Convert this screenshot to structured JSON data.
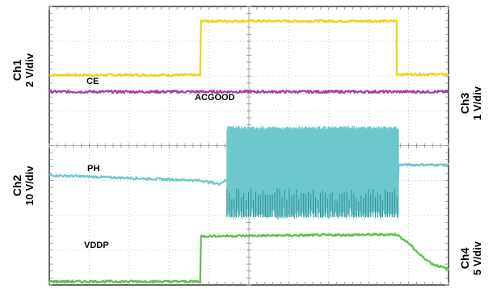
{
  "chart_data": {
    "type": "line",
    "title": "",
    "grid": {
      "divisions_x": 10,
      "divisions_y": 8,
      "visible": true
    },
    "x_range": [
      0,
      10
    ],
    "y_range": [
      0,
      8
    ],
    "channel_labels": [
      {
        "id": "ch1",
        "name": "Ch1",
        "scale": "2 V/div",
        "side": "left"
      },
      {
        "id": "ch2",
        "name": "Ch2",
        "scale": "10 V/div",
        "side": "left"
      },
      {
        "id": "ch3",
        "name": "Ch3",
        "scale": "1 V/div",
        "side": "right"
      },
      {
        "id": "ch4",
        "name": "Ch4",
        "scale": "5 V/div",
        "side": "right"
      }
    ],
    "series": [
      {
        "name": "CE",
        "color": "#e8d619",
        "noise": 0.03,
        "points": [
          [
            0,
            6.03
          ],
          [
            3.8,
            6.03
          ],
          [
            3.8,
            7.58
          ],
          [
            8.7,
            7.58
          ],
          [
            8.7,
            6.05
          ],
          [
            10,
            6.05
          ]
        ]
      },
      {
        "name": "ACGOOD",
        "color": "#a33fa3",
        "noise": 0.035,
        "points": [
          [
            0,
            5.55
          ],
          [
            10,
            5.55
          ]
        ]
      },
      {
        "name": "PH",
        "color": "#6cc8cc",
        "noise": 0.03,
        "points": [
          [
            0,
            3.15
          ],
          [
            3.8,
            3.0
          ],
          [
            4.25,
            2.9
          ],
          [
            4.4,
            3.0
          ],
          [
            8.75,
            3.05
          ],
          [
            8.75,
            3.45
          ],
          [
            10,
            3.45
          ]
        ],
        "switching": {
          "from": 4.45,
          "to": 8.75,
          "low": 1.9,
          "high": 4.5
        }
      },
      {
        "name": "VDDP",
        "color": "#5cc04a",
        "noise": 0.03,
        "points": [
          [
            0,
            0.1
          ],
          [
            3.8,
            0.1
          ],
          [
            3.8,
            1.4
          ],
          [
            8.7,
            1.45
          ],
          [
            9.0,
            1.2
          ],
          [
            9.3,
            0.85
          ],
          [
            9.6,
            0.6
          ],
          [
            10,
            0.45
          ]
        ]
      }
    ]
  }
}
